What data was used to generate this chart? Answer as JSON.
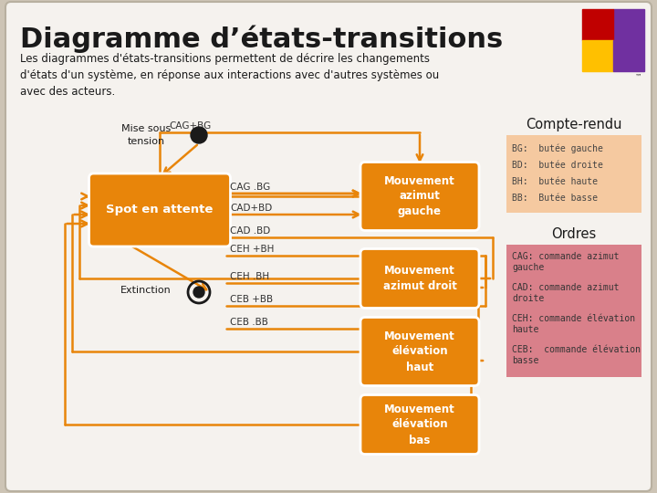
{
  "title": "Diagramme d’états-transitions",
  "subtitle": "Les diagrammes d'états-transitions permettent de décrire les changements\nd'états d'un système, en réponse aux interactions avec d'autres systèmes ou\navec des acteurs.",
  "outer_bg": "#cdc4b5",
  "inner_bg": "#f5f2ee",
  "box_color": "#e8850a",
  "box_edge": "#c07008",
  "compte_rendu_bg": "#f5c9a0",
  "ordres_bg": "#d9808a",
  "arrow_color": "#e8850a",
  "text_color": "#333333",
  "compte_rendu_title": "Compte-rendu",
  "compte_rendu_items": [
    "BG:  butée gauche",
    "BD:  butée droite",
    "BH:  butée haute",
    "BB:  Butée basse"
  ],
  "ordres_title": "Ordres",
  "ordres_items": [
    "CAG: commande azimut\ngauche",
    "CAD: commande azimut\ndroite",
    "CEH: commande élévation\nhaute",
    "CEB:  commande élévation\nbasse"
  ]
}
